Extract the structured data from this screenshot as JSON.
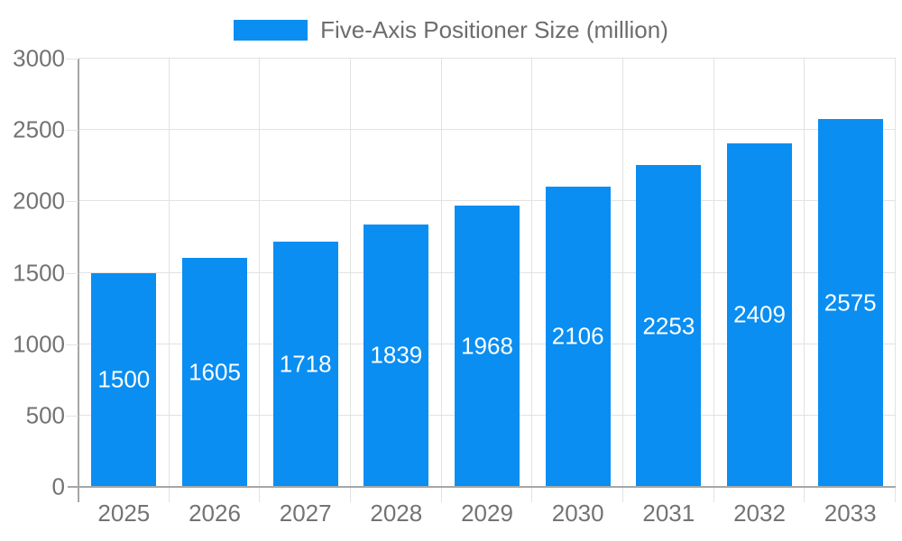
{
  "chart_data": {
    "type": "bar",
    "title": "Five-Axis Positioner Size (million)",
    "categories": [
      "2025",
      "2026",
      "2027",
      "2028",
      "2029",
      "2030",
      "2031",
      "2032",
      "2033"
    ],
    "values": [
      1500,
      1605,
      1718,
      1839,
      1968,
      2106,
      2253,
      2409,
      2575
    ],
    "xlabel": "",
    "ylabel": "",
    "ylim": [
      0,
      3000
    ],
    "yticks": [
      0,
      500,
      1000,
      1500,
      2000,
      2500,
      3000
    ],
    "grid": true,
    "legend_position": "top",
    "bar_value_labels_visible": true,
    "colors": {
      "bar": "#0a8ef2",
      "bar_value_label": "#ffffff",
      "axis_text": "#737373",
      "legend_text": "#6d6d6d",
      "axis_line": "#a6a6a6",
      "gridline": "#e2e2e2",
      "background": "#ffffff"
    }
  }
}
